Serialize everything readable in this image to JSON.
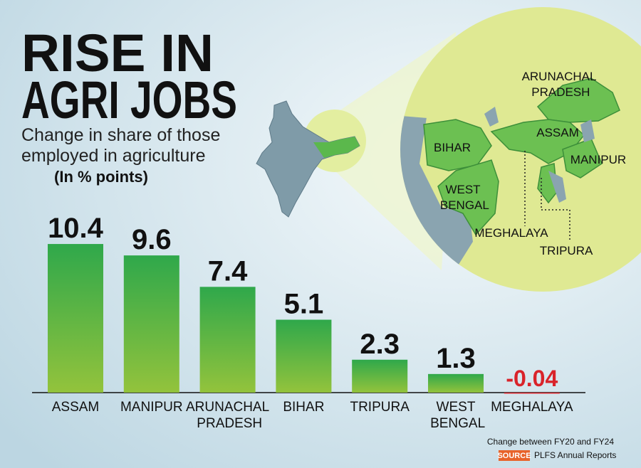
{
  "chart_data": {
    "type": "bar",
    "title_lines": [
      "RISE IN",
      "AGRI JOBS"
    ],
    "subtitle_lines": [
      "Change in share of those",
      "employed in agriculture"
    ],
    "unit_note": "(In % points)",
    "categories": [
      "ASSAM",
      "MANIPUR",
      "ARUNACHAL PRADESH",
      "BIHAR",
      "TRIPURA",
      "WEST BENGAL",
      "MEGHALAYA"
    ],
    "values": [
      10.4,
      9.6,
      7.4,
      5.1,
      2.3,
      1.3,
      -0.04
    ],
    "color": "#3aa94a",
    "negative_color": "#d9232a",
    "ylim": [
      -0.5,
      11
    ],
    "map_labels": [
      "ARUNACHAL PRADESH",
      "ASSAM",
      "BIHAR",
      "MANIPUR",
      "WEST BENGAL",
      "MEGHALAYA",
      "TRIPURA"
    ],
    "footnote": "Change between FY20 and FY24",
    "source_tag": "SOURCE",
    "source": "PLFS Annual Reports"
  }
}
